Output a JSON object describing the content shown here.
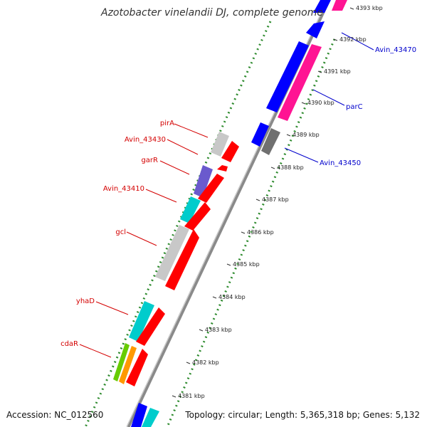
{
  "title": "Azotobacter vinelandii DJ, complete genome",
  "footer": {
    "accession": "Accession: NC_012560",
    "summary": "Topology: circular; Length: 5,365,318 bp; Genes: 5,132"
  },
  "ticks": [
    "4381 kbp",
    "4382 kbp",
    "4383 kbp",
    "4384 kbp",
    "4385 kbp",
    "4386 kbp",
    "4387 kbp",
    "4388 kbp",
    "4389 kbp",
    "4390 kbp",
    "4391 kbp",
    "4392 kbp",
    "4393 kbp"
  ],
  "reverse_labels": [
    {
      "text": "pirA",
      "gene": "pirA"
    },
    {
      "text": "Avin_43430",
      "gene": "Avin_43430"
    },
    {
      "text": "garR",
      "gene": "garR"
    },
    {
      "text": "Avin_43410",
      "gene": "Avin_43410"
    },
    {
      "text": "gcl",
      "gene": "gcl"
    },
    {
      "text": "yhaD",
      "gene": "yhaD"
    },
    {
      "text": "cdaR",
      "gene": "cdaR"
    }
  ],
  "forward_labels": [
    {
      "text": "Avin_43470",
      "gene": "Avin_43470"
    },
    {
      "text": "parC",
      "gene": "parC"
    },
    {
      "text": "Avin_43450",
      "gene": "Avin_43450"
    }
  ],
  "colors": {
    "reverse_label": "#d40000",
    "forward_label": "#0000cc",
    "backbone": "#888888",
    "gc_dots": "#2e8b2e",
    "cds_red": "#ff0000",
    "cds_blue": "#0000ff",
    "cds_pink": "#ff1493",
    "cds_cyan": "#00cccc",
    "cds_grey": "#c8c8c8",
    "cds_darkgrey": "#707070",
    "cds_purple": "#6a5acd",
    "cds_green": "#66cc00",
    "cds_orange": "#ff9900"
  }
}
